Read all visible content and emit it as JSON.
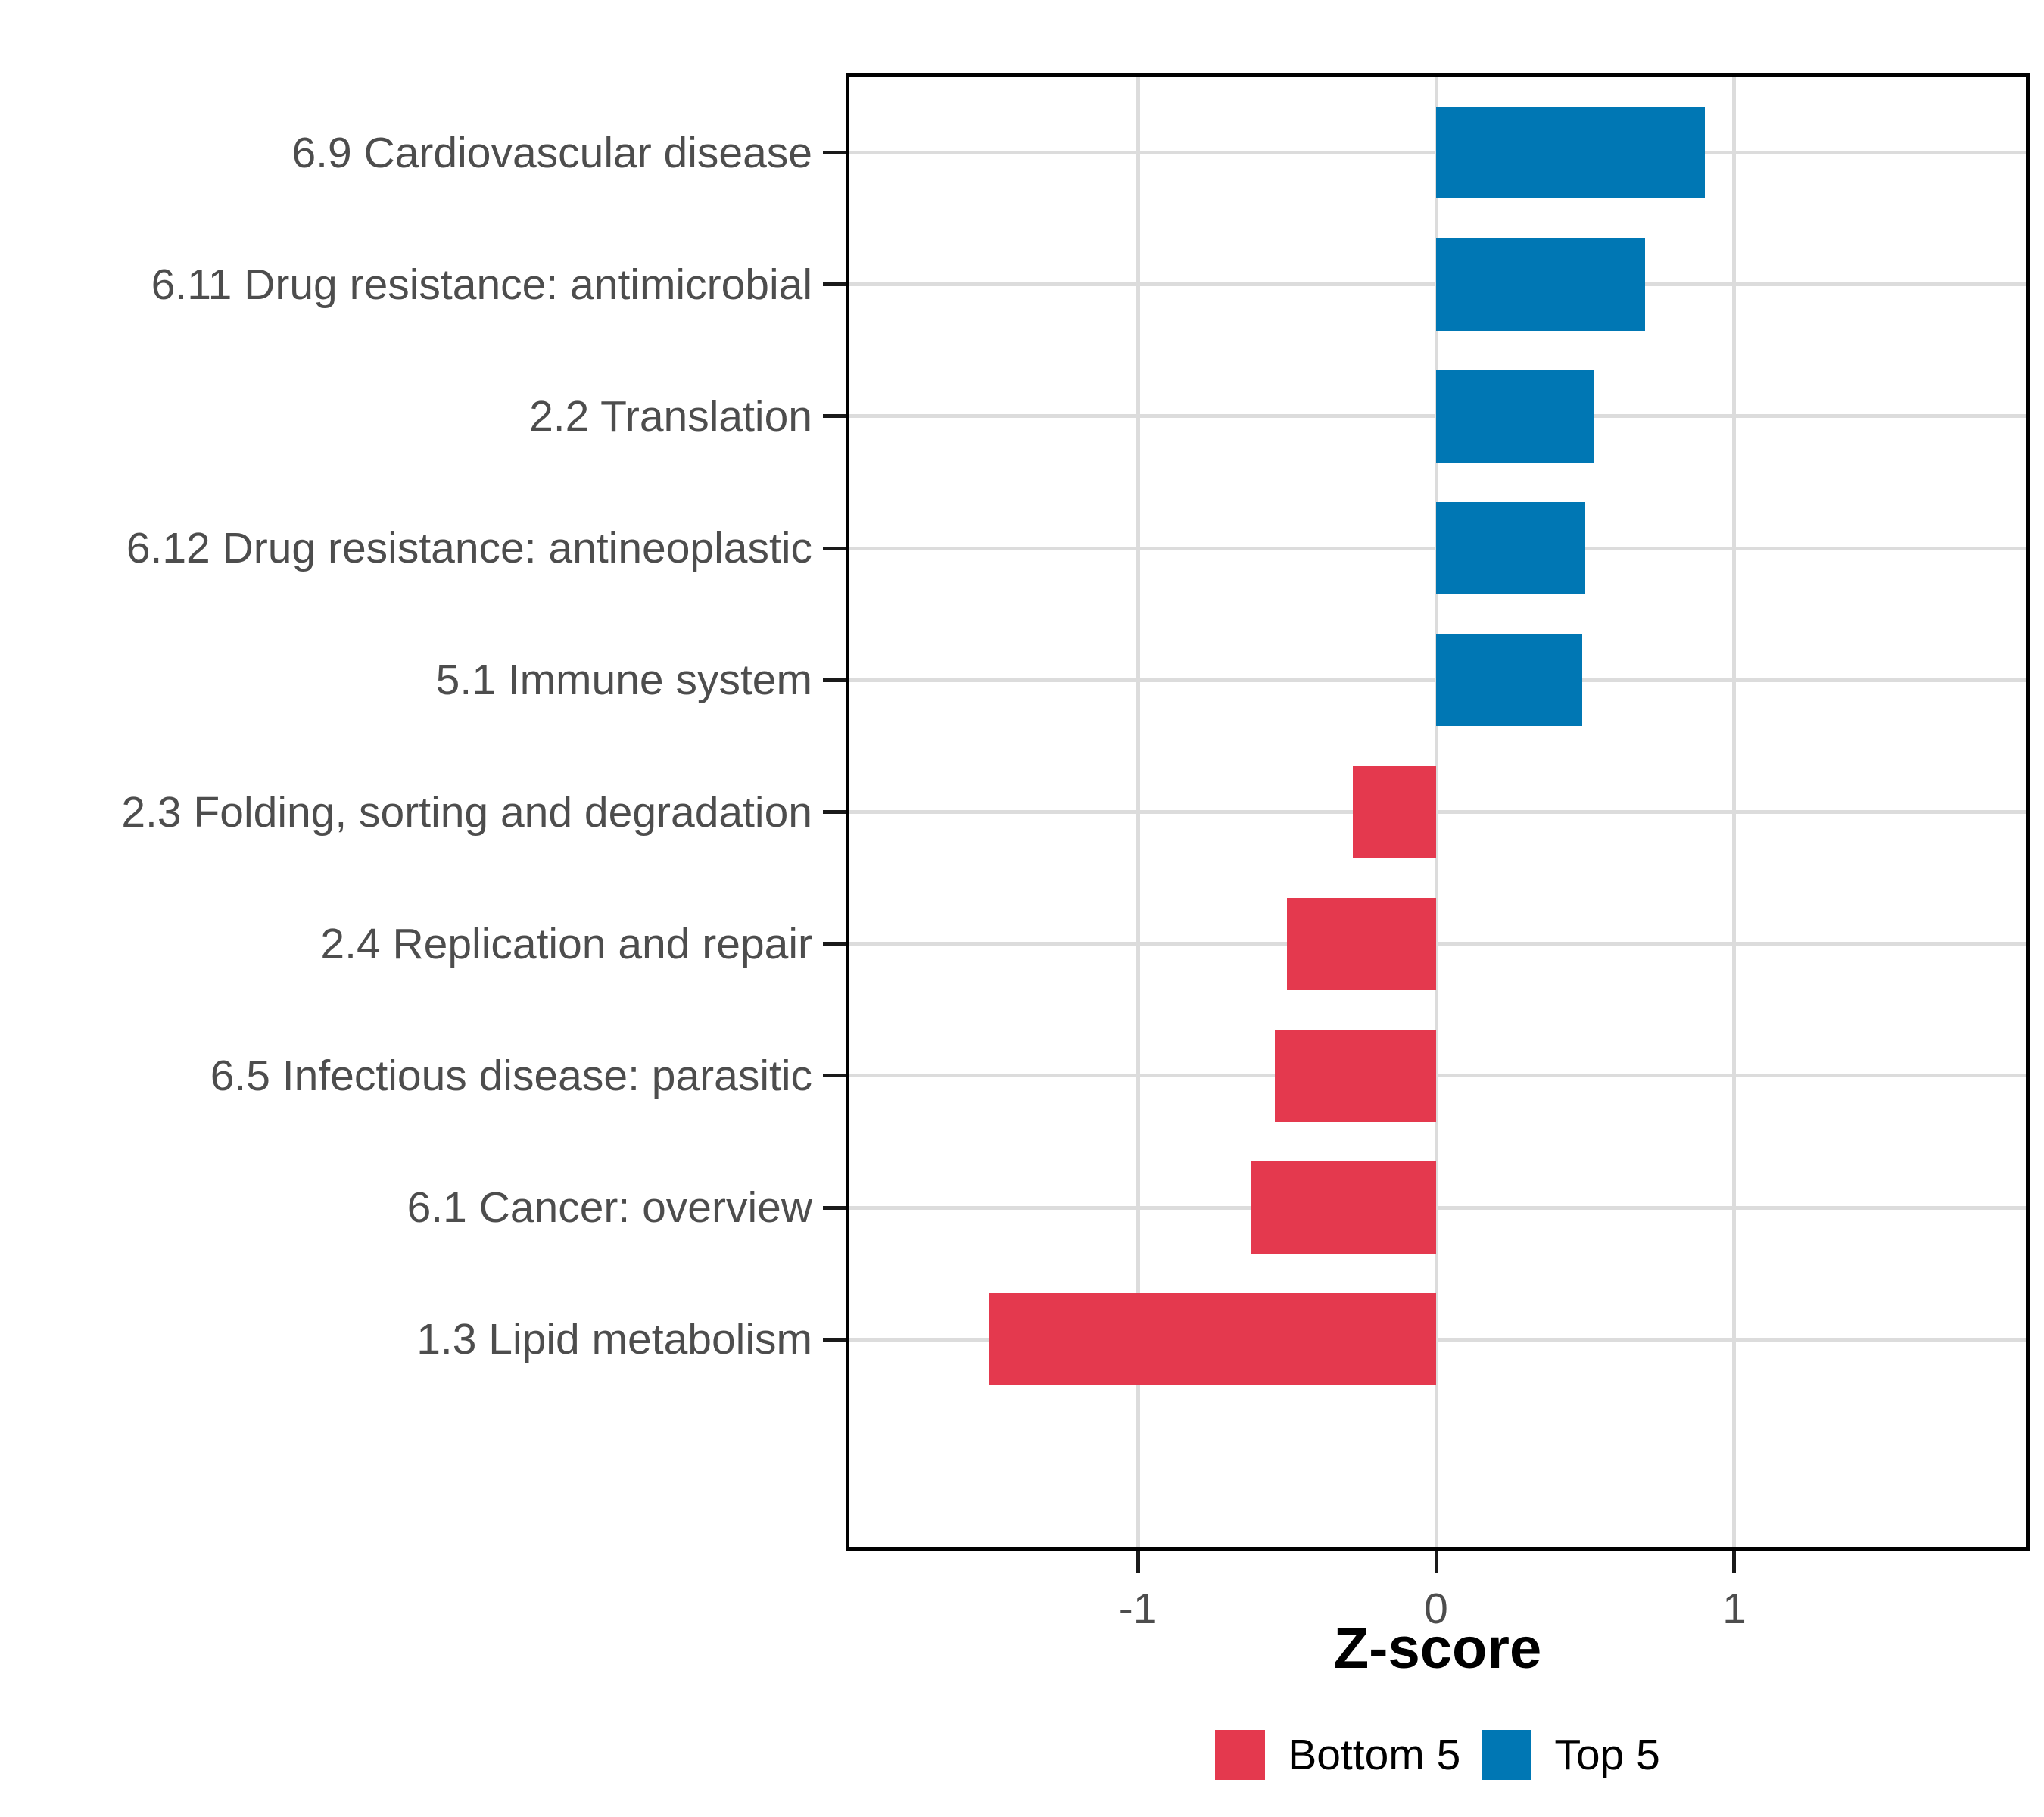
{
  "figure": {
    "background": "#FFFFFF"
  },
  "chart_data": {
    "type": "bar",
    "orientation": "horizontal",
    "title": "",
    "xlabel": "Z-score",
    "ylabel": "",
    "categories": [
      "6.9 Cardiovascular disease",
      "6.11 Drug resistance: antimicrobial",
      "2.2 Translation",
      "6.12 Drug resistance: antineoplastic",
      "5.1 Immune system",
      "2.3 Folding, sorting and degradation",
      "2.4 Replication and repair",
      "6.5 Infectious disease: parasitic",
      "6.1 Cancer: overview",
      "1.3 Lipid metabolism"
    ],
    "values": [
      0.9,
      0.7,
      0.53,
      0.5,
      0.49,
      -0.28,
      -0.5,
      -0.54,
      -0.62,
      -1.5
    ],
    "groups": [
      "Top 5",
      "Top 5",
      "Top 5",
      "Top 5",
      "Top 5",
      "Bottom 5",
      "Bottom 5",
      "Bottom 5",
      "Bottom 5",
      "Bottom 5"
    ],
    "series_colors": {
      "Bottom 5": "#E4394E",
      "Top 5": "#0077B4"
    },
    "legend": {
      "position": "bottom",
      "entries": [
        {
          "label": "Bottom 5",
          "color": "#E4394E"
        },
        {
          "label": "Top 5",
          "color": "#0077B4"
        }
      ]
    },
    "xticks": [
      {
        "value": -1,
        "label": "-1"
      },
      {
        "value": 0,
        "label": "0"
      },
      {
        "value": 1,
        "label": "1"
      }
    ],
    "xlim": [
      -1.98,
      1.99
    ],
    "grid": "major",
    "bar_width_fraction": 0.7,
    "style": {
      "grid_color": "#DCDCDC",
      "panel_border_color": "#000000",
      "tick_color": "#1A1A1A",
      "axis_text_color": "#4D4D4D",
      "axis_title_color": "#000000"
    }
  }
}
